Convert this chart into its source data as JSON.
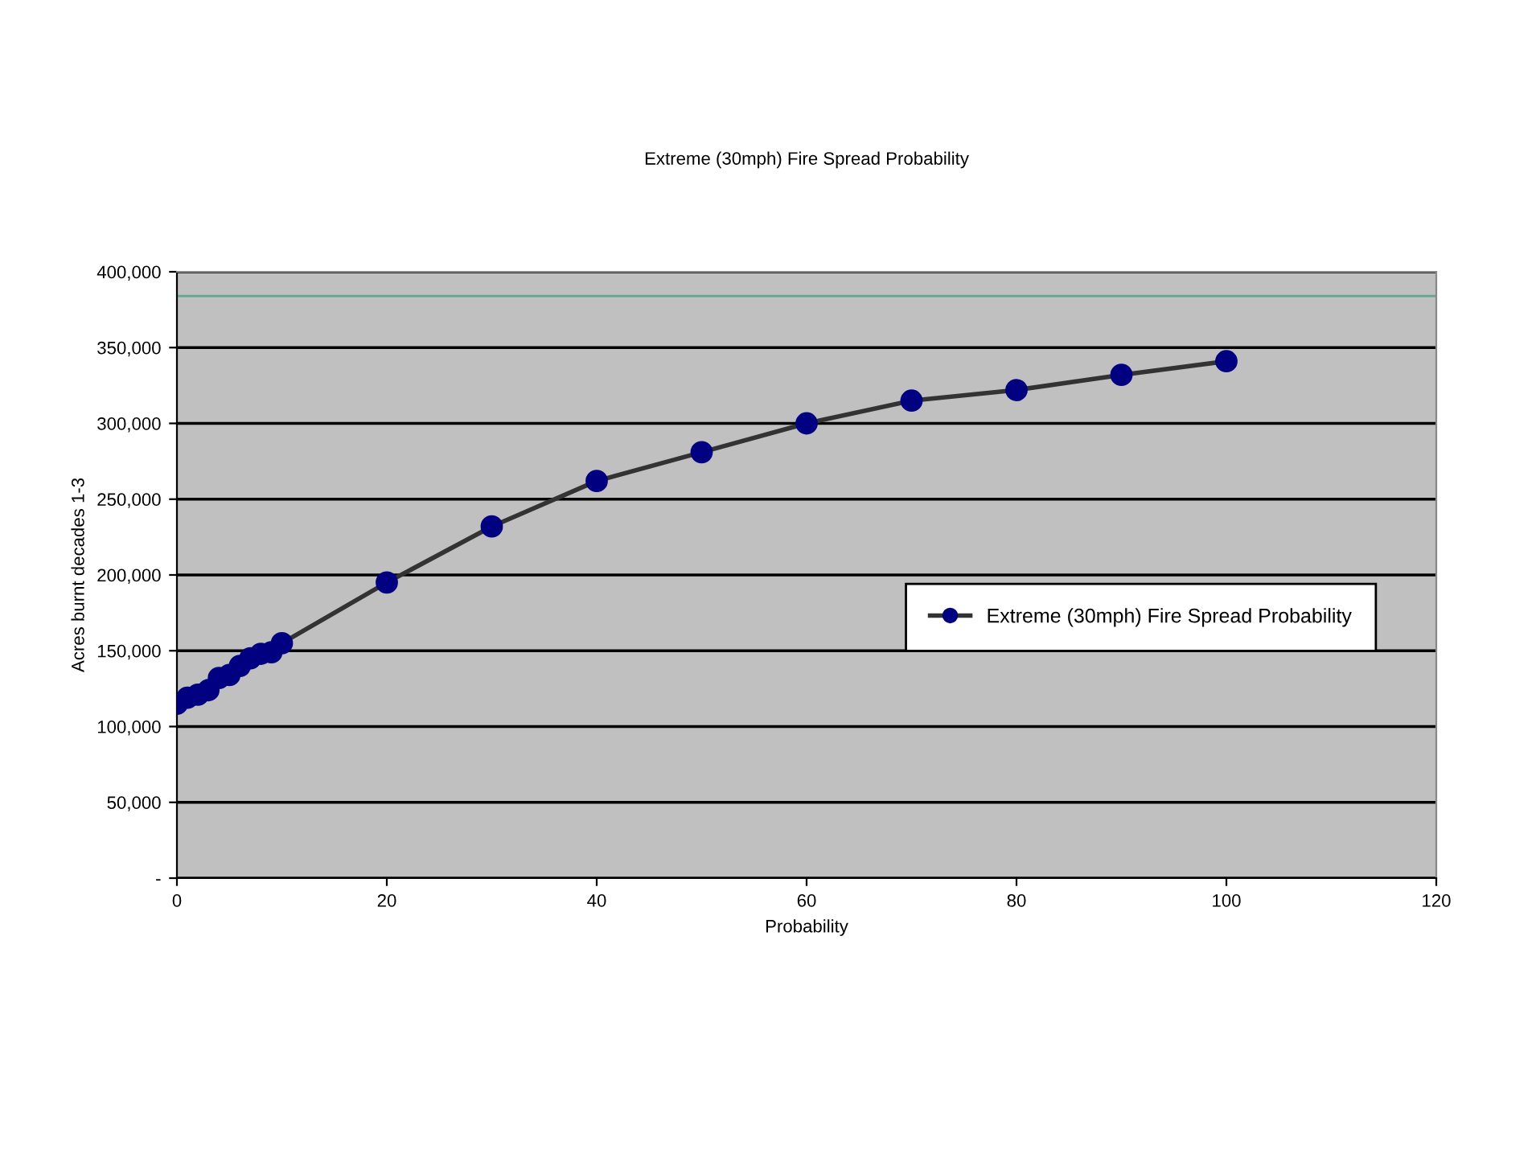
{
  "chart_data": {
    "type": "line",
    "title": "Extreme (30mph) Fire Spread Probability",
    "xlabel": "Probability",
    "ylabel": "Acres burnt decades 1-3",
    "x": [
      0,
      1,
      2,
      3,
      4,
      5,
      6,
      7,
      8,
      9,
      10,
      20,
      30,
      40,
      50,
      60,
      70,
      80,
      90,
      100
    ],
    "series": [
      {
        "name": "Extreme (30mph) Fire Spread Probability",
        "color": "#000080",
        "values": [
          115000,
          119000,
          121000,
          124000,
          132000,
          134000,
          140000,
          145000,
          148000,
          149000,
          155000,
          195000,
          232000,
          262000,
          281000,
          300000,
          315000,
          322000,
          332000,
          341000
        ]
      }
    ],
    "xlim": [
      0,
      120
    ],
    "xticks": [
      0,
      20,
      40,
      60,
      80,
      100,
      120
    ],
    "ylim": [
      0,
      400000
    ],
    "yticks": [
      {
        "value": 0,
        "label": "-"
      },
      {
        "value": 50000,
        "label": "50,000"
      },
      {
        "value": 100000,
        "label": "100,000"
      },
      {
        "value": 150000,
        "label": "150,000"
      },
      {
        "value": 200000,
        "label": "200,000"
      },
      {
        "value": 250000,
        "label": "250,000"
      },
      {
        "value": 300000,
        "label": "300,000"
      },
      {
        "value": 350000,
        "label": "350,000"
      },
      {
        "value": 400000,
        "label": "400,000"
      }
    ],
    "ref_lines": [
      {
        "axis": "y",
        "value": 384000,
        "color": "#5fa88a"
      }
    ],
    "grid": "y",
    "legend": "right",
    "marker": "circle",
    "line_style": "solid"
  }
}
